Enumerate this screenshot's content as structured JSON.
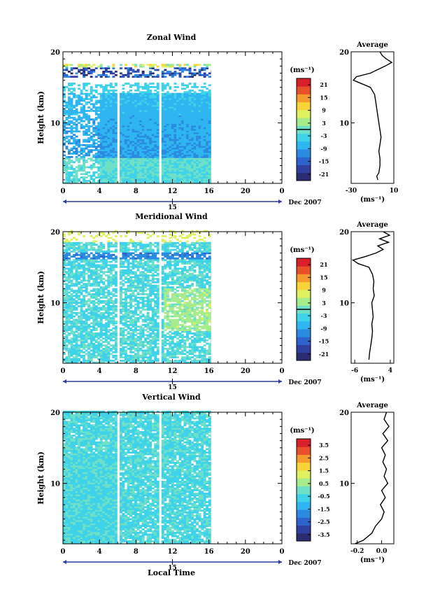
{
  "figure": {
    "date_label": "Dec 2007",
    "xlabel": "Local Time",
    "colorbar_unit": "(ms⁻¹)",
    "avg_unit": "(ms⁻¹)",
    "avg_title": "Average",
    "ylabel": "Height (km)"
  },
  "chart_data": [
    {
      "type": "heatmap",
      "title": "Zonal Wind",
      "xlabel": "Local Time",
      "ylabel": "Height (km)",
      "x_ticks": [
        "0",
        "4",
        "8",
        "12",
        "16",
        "20",
        "0"
      ],
      "x_range": [
        0,
        24
      ],
      "date_tick": "15",
      "y_ticks": [
        "10",
        "20"
      ],
      "y_range": [
        1.5,
        20
      ],
      "data_time_range": [
        0,
        16.2
      ],
      "gaps_hours": [
        6.0,
        10.7
      ],
      "colorbar": {
        "unit": "(ms⁻¹)",
        "range": [
          -24,
          24
        ],
        "ticks": [
          "21",
          "15",
          "9",
          "3",
          "-3",
          "-9",
          "-15",
          "-21"
        ],
        "zero_line": 0
      },
      "average_profile": {
        "title": "Average",
        "unit": "(ms⁻¹)",
        "x_ticks": [
          "-30",
          "10"
        ],
        "x_range": [
          -30,
          10
        ],
        "y_ticks": [
          "10",
          "20"
        ],
        "profile": [
          [
            2,
            -5
          ],
          [
            2.5,
            -6
          ],
          [
            3,
            -4
          ],
          [
            4,
            -3
          ],
          [
            5,
            -3
          ],
          [
            6,
            -4
          ],
          [
            7,
            -3
          ],
          [
            8,
            -2
          ],
          [
            9,
            -3
          ],
          [
            10,
            -4
          ],
          [
            11,
            -5
          ],
          [
            12,
            -6
          ],
          [
            13,
            -7
          ],
          [
            14,
            -8
          ],
          [
            15,
            -12
          ],
          [
            15.5,
            -20
          ],
          [
            16,
            -28
          ],
          [
            16.5,
            -25
          ],
          [
            17,
            -12
          ],
          [
            17.5,
            -5
          ],
          [
            18,
            2
          ],
          [
            18.5,
            8
          ],
          [
            19,
            3
          ],
          [
            19.5,
            -1
          ],
          [
            20,
            -3
          ]
        ]
      }
    },
    {
      "type": "heatmap",
      "title": "Meridional Wind",
      "xlabel": "Local Time",
      "ylabel": "Height (km)",
      "x_ticks": [
        "0",
        "4",
        "8",
        "12",
        "16",
        "20",
        "0"
      ],
      "x_range": [
        0,
        24
      ],
      "date_tick": "15",
      "y_ticks": [
        "10",
        "20"
      ],
      "y_range": [
        1.5,
        20
      ],
      "data_time_range": [
        0,
        16.2
      ],
      "gaps_hours": [
        6.0,
        10.7
      ],
      "colorbar": {
        "unit": "(ms⁻¹)",
        "range": [
          -24,
          24
        ],
        "ticks": [
          "21",
          "15",
          "9",
          "3",
          "-3",
          "-9",
          "-15",
          "-21"
        ],
        "zero_line": 0
      },
      "average_profile": {
        "title": "Average",
        "unit": "(ms⁻¹)",
        "x_ticks": [
          "-6",
          "4"
        ],
        "x_range": [
          -7,
          5
        ],
        "y_ticks": [
          "10",
          "20"
        ],
        "profile": [
          [
            2,
            -2
          ],
          [
            3,
            -1.8
          ],
          [
            4,
            -1.5
          ],
          [
            5,
            -1.2
          ],
          [
            6,
            -1
          ],
          [
            7,
            -1.2
          ],
          [
            8,
            -0.8
          ],
          [
            9,
            -1
          ],
          [
            10,
            -1.2
          ],
          [
            11,
            -0.5
          ],
          [
            12,
            -0.8
          ],
          [
            13,
            -0.6
          ],
          [
            14,
            -1
          ],
          [
            15,
            -2
          ],
          [
            15.5,
            -5
          ],
          [
            16,
            -6.5
          ],
          [
            16.5,
            -3
          ],
          [
            17,
            0
          ],
          [
            17.5,
            2
          ],
          [
            18,
            0.5
          ],
          [
            18.5,
            3.5
          ],
          [
            19,
            1
          ],
          [
            19.5,
            3.8
          ],
          [
            20,
            2
          ]
        ]
      }
    },
    {
      "type": "heatmap",
      "title": "Vertical Wind",
      "xlabel": "Local Time",
      "ylabel": "Height (km)",
      "x_ticks": [
        "0",
        "4",
        "8",
        "12",
        "16",
        "20",
        "0"
      ],
      "x_range": [
        0,
        24
      ],
      "date_tick": "15",
      "y_ticks": [
        "10",
        "20"
      ],
      "y_range": [
        1.5,
        20
      ],
      "data_time_range": [
        0,
        16.2
      ],
      "gaps_hours": [
        6.0,
        10.7
      ],
      "colorbar": {
        "unit": "(ms⁻¹)",
        "range": [
          -4,
          4
        ],
        "ticks": [
          "3.5",
          "2.5",
          "1.5",
          "0.5",
          "-0.5",
          "-1.5",
          "-2.5",
          "-3.5"
        ],
        "zero_line": null
      },
      "average_profile": {
        "title": "Average",
        "unit": "(ms⁻¹)",
        "x_ticks": [
          "-0.2",
          "0.0"
        ],
        "x_range": [
          -0.25,
          0.1
        ],
        "y_ticks": [
          "10",
          "20"
        ],
        "profile": [
          [
            1.5,
            -0.22
          ],
          [
            2,
            -0.15
          ],
          [
            3,
            -0.08
          ],
          [
            4,
            -0.05
          ],
          [
            5,
            0.0
          ],
          [
            6,
            0.02
          ],
          [
            7,
            -0.01
          ],
          [
            8,
            0.03
          ],
          [
            9,
            0.0
          ],
          [
            10,
            0.05
          ],
          [
            11,
            0.02
          ],
          [
            12,
            0.04
          ],
          [
            13,
            0.01
          ],
          [
            14,
            0.03
          ],
          [
            15,
            0.0
          ],
          [
            16,
            0.05
          ],
          [
            17,
            0.01
          ],
          [
            18,
            0.06
          ],
          [
            19,
            0.02
          ],
          [
            20,
            0.04
          ]
        ]
      }
    }
  ],
  "colors": {
    "scale": [
      "#2b2b70",
      "#2f3f9f",
      "#2e62cc",
      "#2a8be0",
      "#2fb5f0",
      "#3fd2e8",
      "#6fe0c8",
      "#a6ec8a",
      "#dff060",
      "#f7d53a",
      "#f49a2e",
      "#e8502a",
      "#d81f2a"
    ]
  }
}
